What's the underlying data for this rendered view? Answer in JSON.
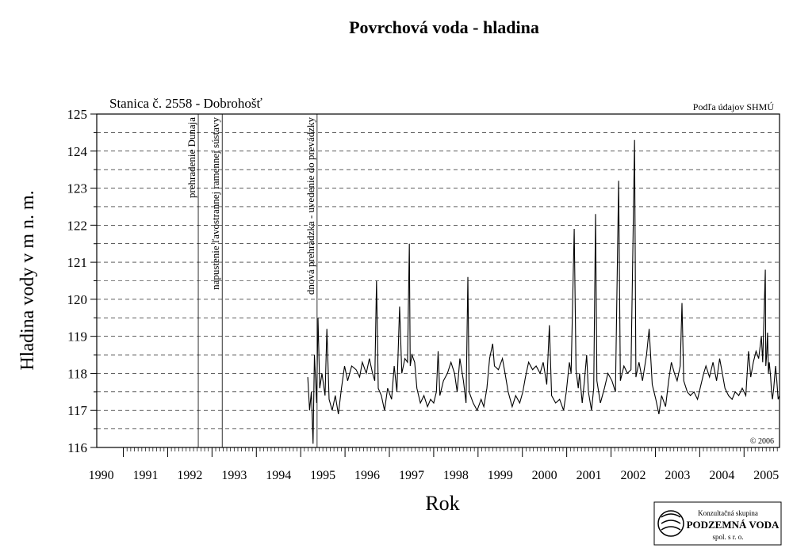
{
  "chart_data": {
    "type": "line",
    "title": "Povrchová voda - hladina",
    "subtitle": "Stanica č. 2558 - Dobrohošť",
    "source": "Podľa údajov SHMÚ",
    "copyright": "© 2006",
    "x_label": "Rok",
    "y_label": "Hladina vody v m n. m.",
    "logo": {
      "line1": "Konzultačná skupina",
      "line2": "PODZEMNÁ VODA",
      "line3": "spol. s r. o."
    },
    "xlim": [
      1990.4,
      2005.8
    ],
    "xticks": [
      1990,
      1991,
      1992,
      1993,
      1994,
      1995,
      1996,
      1997,
      1998,
      1999,
      2000,
      2001,
      2002,
      2003,
      2004,
      2005
    ],
    "ylim": [
      116,
      125
    ],
    "yticks": [
      116,
      117,
      118,
      119,
      120,
      121,
      122,
      123,
      124,
      125
    ],
    "grid": true,
    "annotations": [
      {
        "x": 1992.69,
        "text": "prehradenie Dunaja"
      },
      {
        "x": 1993.23,
        "text": "napustenie ľavostrannej ramennej sústavy"
      },
      {
        "x": 1995.37,
        "text": "dnová prehrádzka - uvedenie do prevádzky"
      }
    ],
    "color": "#000000",
    "x": [
      1995.16,
      1995.2,
      1995.24,
      1995.28,
      1995.31,
      1995.36,
      1995.39,
      1995.43,
      1995.48,
      1995.55,
      1995.59,
      1995.64,
      1995.71,
      1995.78,
      1995.85,
      1995.92,
      1995.99,
      1996.06,
      1996.15,
      1996.25,
      1996.33,
      1996.39,
      1996.48,
      1996.55,
      1996.62,
      1996.67,
      1996.71,
      1996.75,
      1996.82,
      1996.89,
      1996.96,
      1997.05,
      1997.11,
      1997.17,
      1997.23,
      1997.28,
      1997.35,
      1997.41,
      1997.45,
      1997.47,
      1997.51,
      1997.57,
      1997.62,
      1997.7,
      1997.78,
      1997.86,
      1997.93,
      1998.0,
      1998.06,
      1998.1,
      1998.14,
      1998.22,
      1998.31,
      1998.39,
      1998.47,
      1998.53,
      1998.59,
      1998.67,
      1998.73,
      1998.77,
      1998.8,
      1998.89,
      1998.98,
      1999.07,
      1999.13,
      1999.2,
      1999.26,
      1999.33,
      1999.37,
      1999.46,
      1999.55,
      1999.61,
      1999.68,
      1999.77,
      1999.85,
      1999.94,
      2000.01,
      2000.07,
      2000.14,
      2000.23,
      2000.31,
      2000.4,
      2000.47,
      2000.55,
      2000.61,
      2000.66,
      2000.75,
      2000.84,
      2000.93,
      2000.99,
      2001.06,
      2001.1,
      2001.17,
      2001.21,
      2001.26,
      2001.29,
      2001.35,
      2001.4,
      2001.45,
      2001.49,
      2001.56,
      2001.61,
      2001.65,
      2001.68,
      2001.76,
      2001.85,
      2001.93,
      2002.02,
      2002.1,
      2002.17,
      2002.21,
      2002.29,
      2002.37,
      2002.45,
      2002.53,
      2002.56,
      2002.63,
      2002.71,
      2002.8,
      2002.86,
      2002.93,
      2003.01,
      2003.08,
      2003.14,
      2003.23,
      2003.3,
      2003.36,
      2003.43,
      2003.49,
      2003.56,
      2003.6,
      2003.64,
      2003.72,
      2003.79,
      2003.87,
      2003.95,
      2004.03,
      2004.09,
      2004.14,
      2004.22,
      2004.3,
      2004.38,
      2004.45,
      2004.51,
      2004.57,
      2004.65,
      2004.73,
      2004.8,
      2004.88,
      2004.96,
      2005.04,
      2005.1,
      2005.15,
      2005.21,
      2005.27,
      2005.33,
      2005.39,
      2005.42,
      2005.48,
      2005.49,
      2005.51,
      2005.53,
      2005.55,
      2005.57,
      2005.6,
      2005.62,
      2005.64,
      2005.67,
      2005.71,
      2005.74,
      2005.77,
      2005.8
    ],
    "values": [
      117.9,
      117.0,
      117.5,
      116.1,
      118.5,
      117.2,
      119.5,
      117.6,
      118.0,
      117.4,
      119.2,
      117.3,
      117.0,
      117.4,
      116.9,
      117.6,
      118.2,
      117.8,
      118.2,
      118.1,
      117.9,
      118.3,
      118.0,
      118.4,
      118.0,
      117.8,
      120.5,
      117.6,
      117.4,
      117.0,
      117.6,
      117.3,
      118.2,
      117.5,
      119.8,
      118.0,
      118.4,
      118.3,
      121.5,
      118.2,
      118.5,
      118.3,
      117.6,
      117.2,
      117.4,
      117.1,
      117.3,
      117.2,
      117.5,
      118.6,
      117.4,
      117.8,
      118.0,
      118.3,
      118.0,
      117.5,
      118.4,
      117.8,
      117.2,
      120.6,
      117.5,
      117.2,
      117.0,
      117.3,
      117.1,
      117.6,
      118.4,
      118.8,
      118.2,
      118.1,
      118.4,
      118.0,
      117.5,
      117.1,
      117.4,
      117.2,
      117.5,
      117.9,
      118.3,
      118.1,
      118.2,
      118.0,
      118.3,
      117.7,
      119.3,
      117.4,
      117.2,
      117.3,
      117.0,
      117.5,
      118.3,
      118.0,
      121.9,
      118.1,
      117.6,
      118.0,
      117.2,
      117.8,
      118.5,
      117.5,
      117.0,
      117.6,
      122.3,
      117.8,
      117.2,
      117.6,
      118.0,
      117.8,
      117.5,
      123.2,
      117.8,
      118.2,
      118.0,
      118.1,
      124.3,
      117.9,
      118.3,
      117.8,
      118.5,
      119.2,
      117.7,
      117.3,
      116.9,
      117.4,
      117.1,
      117.8,
      118.3,
      118.0,
      117.8,
      118.2,
      119.9,
      117.8,
      117.5,
      117.4,
      117.5,
      117.3,
      117.7,
      118.0,
      118.2,
      117.9,
      118.3,
      117.8,
      118.4,
      118.0,
      117.6,
      117.4,
      117.3,
      117.5,
      117.4,
      117.6,
      117.4,
      118.6,
      117.9,
      118.3,
      118.6,
      118.4,
      119.0,
      118.3,
      120.8,
      118.2,
      118.5,
      119.1,
      118.0,
      118.3,
      117.9,
      117.5,
      117.3,
      117.6,
      118.2,
      117.8,
      117.3,
      117.4
    ]
  }
}
